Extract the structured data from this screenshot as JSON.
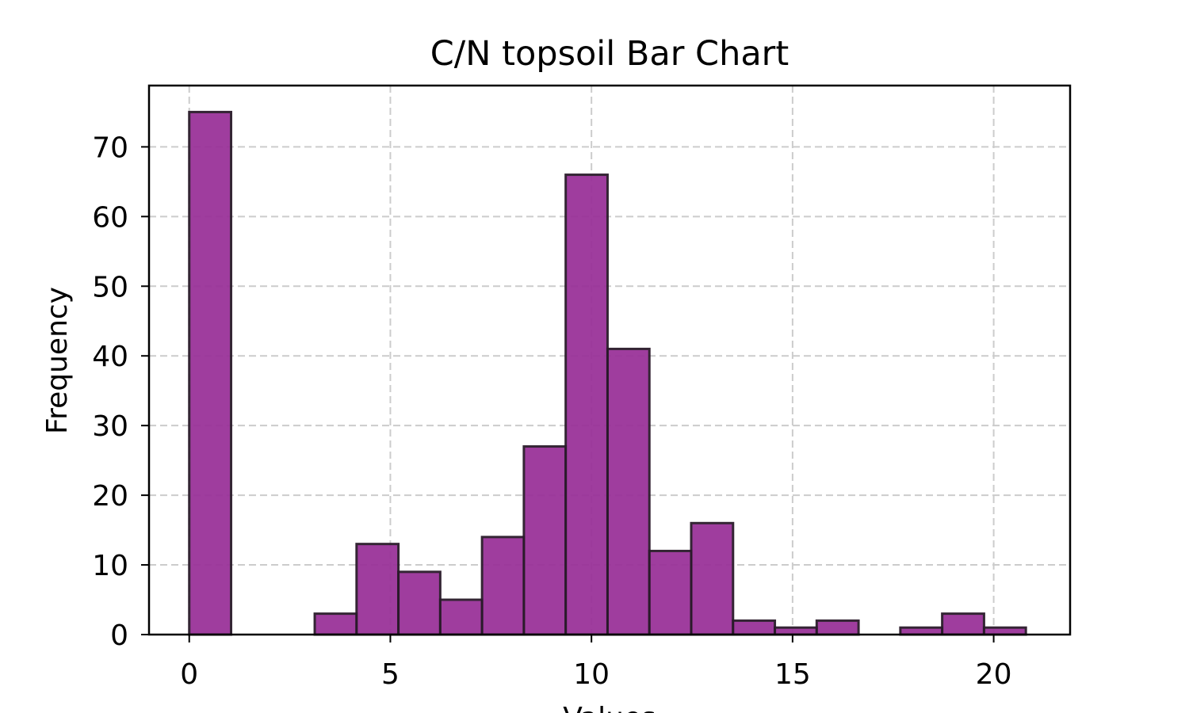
{
  "chart_data": {
    "type": "bar",
    "title": "C/N topsoil Bar Chart",
    "xlabel": "Values",
    "ylabel": "Frequency",
    "xlim": [
      -1,
      21.9
    ],
    "ylim": [
      0,
      78.8
    ],
    "x_ticks": [
      0,
      5,
      10,
      15,
      20
    ],
    "y_ticks": [
      0,
      10,
      20,
      30,
      40,
      50,
      60,
      70
    ],
    "grid": true,
    "bar_color": "#9a3399",
    "edge_color": "#1a1a1a",
    "bins": [
      {
        "start": 0.0,
        "end": 1.04,
        "value": 75
      },
      {
        "start": 1.04,
        "end": 2.08,
        "value": 0
      },
      {
        "start": 2.08,
        "end": 3.12,
        "value": 0
      },
      {
        "start": 3.12,
        "end": 4.16,
        "value": 3
      },
      {
        "start": 4.16,
        "end": 5.2,
        "value": 13
      },
      {
        "start": 5.2,
        "end": 6.24,
        "value": 9
      },
      {
        "start": 6.24,
        "end": 7.28,
        "value": 5
      },
      {
        "start": 7.28,
        "end": 8.32,
        "value": 14
      },
      {
        "start": 8.32,
        "end": 9.36,
        "value": 27
      },
      {
        "start": 9.36,
        "end": 10.4,
        "value": 66
      },
      {
        "start": 10.4,
        "end": 11.44,
        "value": 41
      },
      {
        "start": 11.44,
        "end": 12.48,
        "value": 12
      },
      {
        "start": 12.48,
        "end": 13.52,
        "value": 16
      },
      {
        "start": 13.52,
        "end": 14.56,
        "value": 2
      },
      {
        "start": 14.56,
        "end": 15.6,
        "value": 1
      },
      {
        "start": 15.6,
        "end": 16.64,
        "value": 2
      },
      {
        "start": 16.64,
        "end": 17.68,
        "value": 0
      },
      {
        "start": 17.68,
        "end": 18.72,
        "value": 1
      },
      {
        "start": 18.72,
        "end": 19.76,
        "value": 3
      },
      {
        "start": 19.76,
        "end": 20.8,
        "value": 1
      }
    ]
  }
}
